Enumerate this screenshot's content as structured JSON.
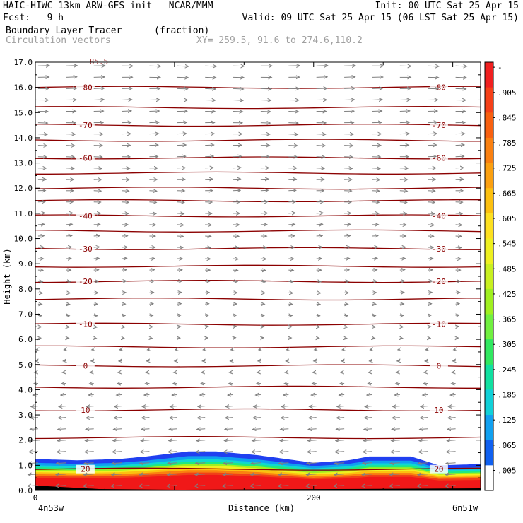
{
  "header": {
    "line1_left": "HAIC-HIWC 13km ARW-GFS init   NCAR/MMM",
    "line1_right": "Init: 00 UTC Sat 25 Apr 15",
    "line2_left": "Fcst:   9 h",
    "line2_right": "Valid: 09 UTC Sat 25 Apr 15 (06 LST Sat 25 Apr 15)",
    "line3_left": "Boundary Layer Tracer",
    "line3_mid": "(fraction)",
    "line4_left": "Circulation vectors",
    "line4_mid": "XY= 259.5, 91.6 to 274.6,110.2"
  },
  "chart_data": {
    "type": "heatmap",
    "xlabel": "Distance (km)",
    "ylabel": "Height (km)",
    "xlim": [
      0,
      320
    ],
    "ylim": [
      0,
      17
    ],
    "x_ticks": [
      {
        "v": 0,
        "label": "0"
      },
      {
        "v": 200,
        "label": "200"
      }
    ],
    "x_endpoint_labels": {
      "left": "4n53w",
      "right": "6n51w"
    },
    "y_ticks": [
      "0.0",
      "1.0",
      "2.0",
      "3.0",
      "4.0",
      "5.0",
      "6.0",
      "7.0",
      "8.0",
      "9.0",
      "10.0",
      "11.0",
      "12.0",
      "13.0",
      "14.0",
      "15.0",
      "16.0",
      "17.0"
    ],
    "colorbar": {
      "labels": [
        "-",
        ".905",
        ".845",
        ".785",
        ".725",
        ".665",
        ".605",
        ".545",
        ".485",
        ".425",
        ".365",
        ".305",
        ".245",
        ".185",
        ".125",
        ".065",
        ".005"
      ],
      "colors": [
        "#f02020",
        "#f54018",
        "#f86010",
        "#fa8010",
        "#fba010",
        "#fcc010",
        "#fde020",
        "#eef020",
        "#c8f020",
        "#a0f020",
        "#70f040",
        "#30e860",
        "#10e0a0",
        "#10d0d8",
        "#10a0f0",
        "#1060f0",
        "#ffffff"
      ]
    },
    "boundary_layer_top_km": [
      {
        "x": 0,
        "z": 1.25
      },
      {
        "x": 30,
        "z": 1.2
      },
      {
        "x": 60,
        "z": 1.25
      },
      {
        "x": 80,
        "z": 1.35
      },
      {
        "x": 110,
        "z": 1.55
      },
      {
        "x": 130,
        "z": 1.55
      },
      {
        "x": 160,
        "z": 1.4
      },
      {
        "x": 200,
        "z": 1.1
      },
      {
        "x": 225,
        "z": 1.2
      },
      {
        "x": 240,
        "z": 1.35
      },
      {
        "x": 270,
        "z": 1.35
      },
      {
        "x": 290,
        "z": 1.0
      },
      {
        "x": 320,
        "z": 1.05
      }
    ],
    "isotherms": [
      {
        "label": "-80",
        "z": 16.0,
        "labeled": true
      },
      {
        "label": "",
        "z": 15.2,
        "labeled": false
      },
      {
        "label": "-70",
        "z": 14.5,
        "labeled": true
      },
      {
        "label": "",
        "z": 13.9,
        "labeled": false
      },
      {
        "label": "-60",
        "z": 13.2,
        "labeled": true
      },
      {
        "label": "",
        "z": 12.6,
        "labeled": false
      },
      {
        "label": "",
        "z": 12.0,
        "labeled": false
      },
      {
        "label": "",
        "z": 11.5,
        "labeled": false
      },
      {
        "label": "-40",
        "z": 10.9,
        "labeled": true
      },
      {
        "label": "",
        "z": 10.3,
        "labeled": false
      },
      {
        "label": "-30",
        "z": 9.6,
        "labeled": true
      },
      {
        "label": "",
        "z": 8.9,
        "labeled": false
      },
      {
        "label": "-20",
        "z": 8.3,
        "labeled": true
      },
      {
        "label": "",
        "z": 7.6,
        "labeled": false
      },
      {
        "label": "-10",
        "z": 6.6,
        "labeled": true
      },
      {
        "label": "",
        "z": 5.7,
        "labeled": false
      },
      {
        "label": "0",
        "z": 4.95,
        "labeled": true
      },
      {
        "label": "",
        "z": 4.1,
        "labeled": false
      },
      {
        "label": "10",
        "z": 3.2,
        "labeled": true
      },
      {
        "label": "",
        "z": 2.1,
        "labeled": false
      },
      {
        "label": "20",
        "z": 0.85,
        "labeled": true
      }
    ],
    "top_partial_label": "-85.5",
    "wind": {
      "upper_direction": "eastward",
      "lower_direction": "westward",
      "reversal_height_km": 6.0
    },
    "grid": false,
    "legend": "colorbar-right"
  }
}
